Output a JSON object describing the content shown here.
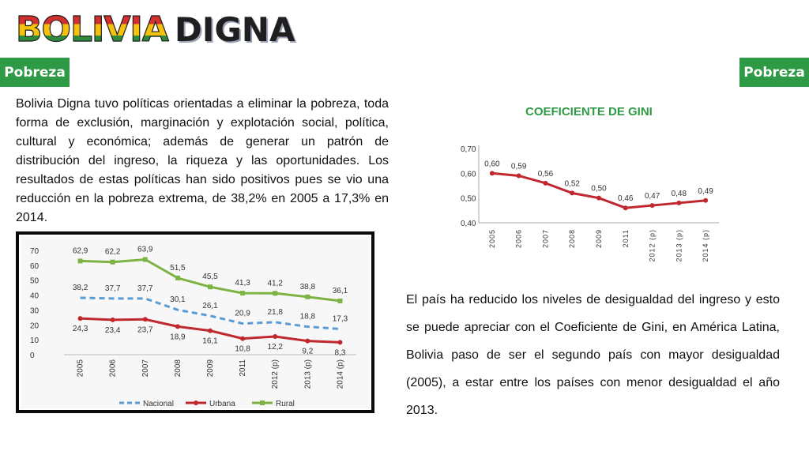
{
  "header": {
    "logo_word_1": "BOLIVIA",
    "logo_word_2": "DIGNA"
  },
  "badges": {
    "left": "Pobreza",
    "right": "Pobreza"
  },
  "colors": {
    "badge_green": "#2f9a45",
    "nacional": "#5b9bd5",
    "urbana": "#c0282d",
    "rural": "#7cb342",
    "gini_line": "#c0282d"
  },
  "left_text": "Bolivia Digna tuvo políticas orientadas a eliminar la pobreza, toda forma de exclusión, marginación y explotación social, política, cultural y económica; además de generar un patrón de distribución del ingreso, la riqueza y las oportunidades. Los resultados de estas políticas han sido positivos pues se vio una reducción en la pobreza extrema, de 38,2% en 2005 a 17,3% en 2014.",
  "right_text": "El país ha reducido los niveles de desigualdad del ingreso y esto se puede apreciar con el Coeficiente de Gini, en América Latina, Bolivia paso de ser el segundo país con mayor desigualdad (2005), a estar entre los países con menor desigualdad el año 2013.",
  "gini_title": "COEFICIENTE DE GINI",
  "chart_data": [
    {
      "type": "line",
      "title": "",
      "categories": [
        "2005",
        "2006",
        "2007",
        "2008",
        "2009",
        "2011",
        "2012 (p)",
        "2013 (p)",
        "2014 (p)"
      ],
      "y_ticks": [
        "0",
        "10",
        "20",
        "30",
        "40",
        "50",
        "60",
        "70"
      ],
      "ylim": [
        0,
        70
      ],
      "grid": false,
      "legend": "bottom",
      "series": [
        {
          "name": "Nacional",
          "style": "dashed",
          "color": "#5b9bd5",
          "values": [
            38.2,
            37.7,
            37.7,
            30.1,
            26.1,
            20.9,
            21.8,
            18.8,
            17.3
          ],
          "labels": [
            "38,2",
            "37,7",
            "37,7",
            "30,1",
            "26,1",
            "20,9",
            "21,8",
            "18,8",
            "17,3"
          ]
        },
        {
          "name": "Urbana",
          "style": "solid",
          "color": "#c0282d",
          "values": [
            24.3,
            23.4,
            23.7,
            18.9,
            16.1,
            10.8,
            12.2,
            9.2,
            8.3
          ],
          "labels": [
            "24,3",
            "23,4",
            "23,7",
            "18,9",
            "16,1",
            "10,8",
            "12,2",
            "9,2",
            "8,3"
          ]
        },
        {
          "name": "Rural",
          "style": "solid",
          "color": "#7cb342",
          "values": [
            62.9,
            62.2,
            63.9,
            51.5,
            45.5,
            41.3,
            41.2,
            38.8,
            36.1
          ],
          "labels": [
            "62,9",
            "62,2",
            "63,9",
            "51,5",
            "45,5",
            "41,3",
            "41,2",
            "38,8",
            "36,1"
          ]
        }
      ]
    },
    {
      "type": "line",
      "title": "COEFICIENTE DE GINI",
      "categories": [
        "2005",
        "2006",
        "2007",
        "2008",
        "2009",
        "2011",
        "2012 (p)",
        "2013 (p)",
        "2014 (p)"
      ],
      "y_ticks": [
        "0,40",
        "0,50",
        "0,60",
        "0,70"
      ],
      "ylim": [
        0.4,
        0.7
      ],
      "grid": false,
      "series": [
        {
          "color": "#c0282d",
          "values": [
            0.6,
            0.59,
            0.56,
            0.52,
            0.5,
            0.46,
            0.47,
            0.48,
            0.49
          ],
          "labels": [
            "0,60",
            "0,59",
            "0,56",
            "0,52",
            "0,50",
            "0,46",
            "0,47",
            "0,48",
            "0,49"
          ]
        }
      ]
    }
  ]
}
